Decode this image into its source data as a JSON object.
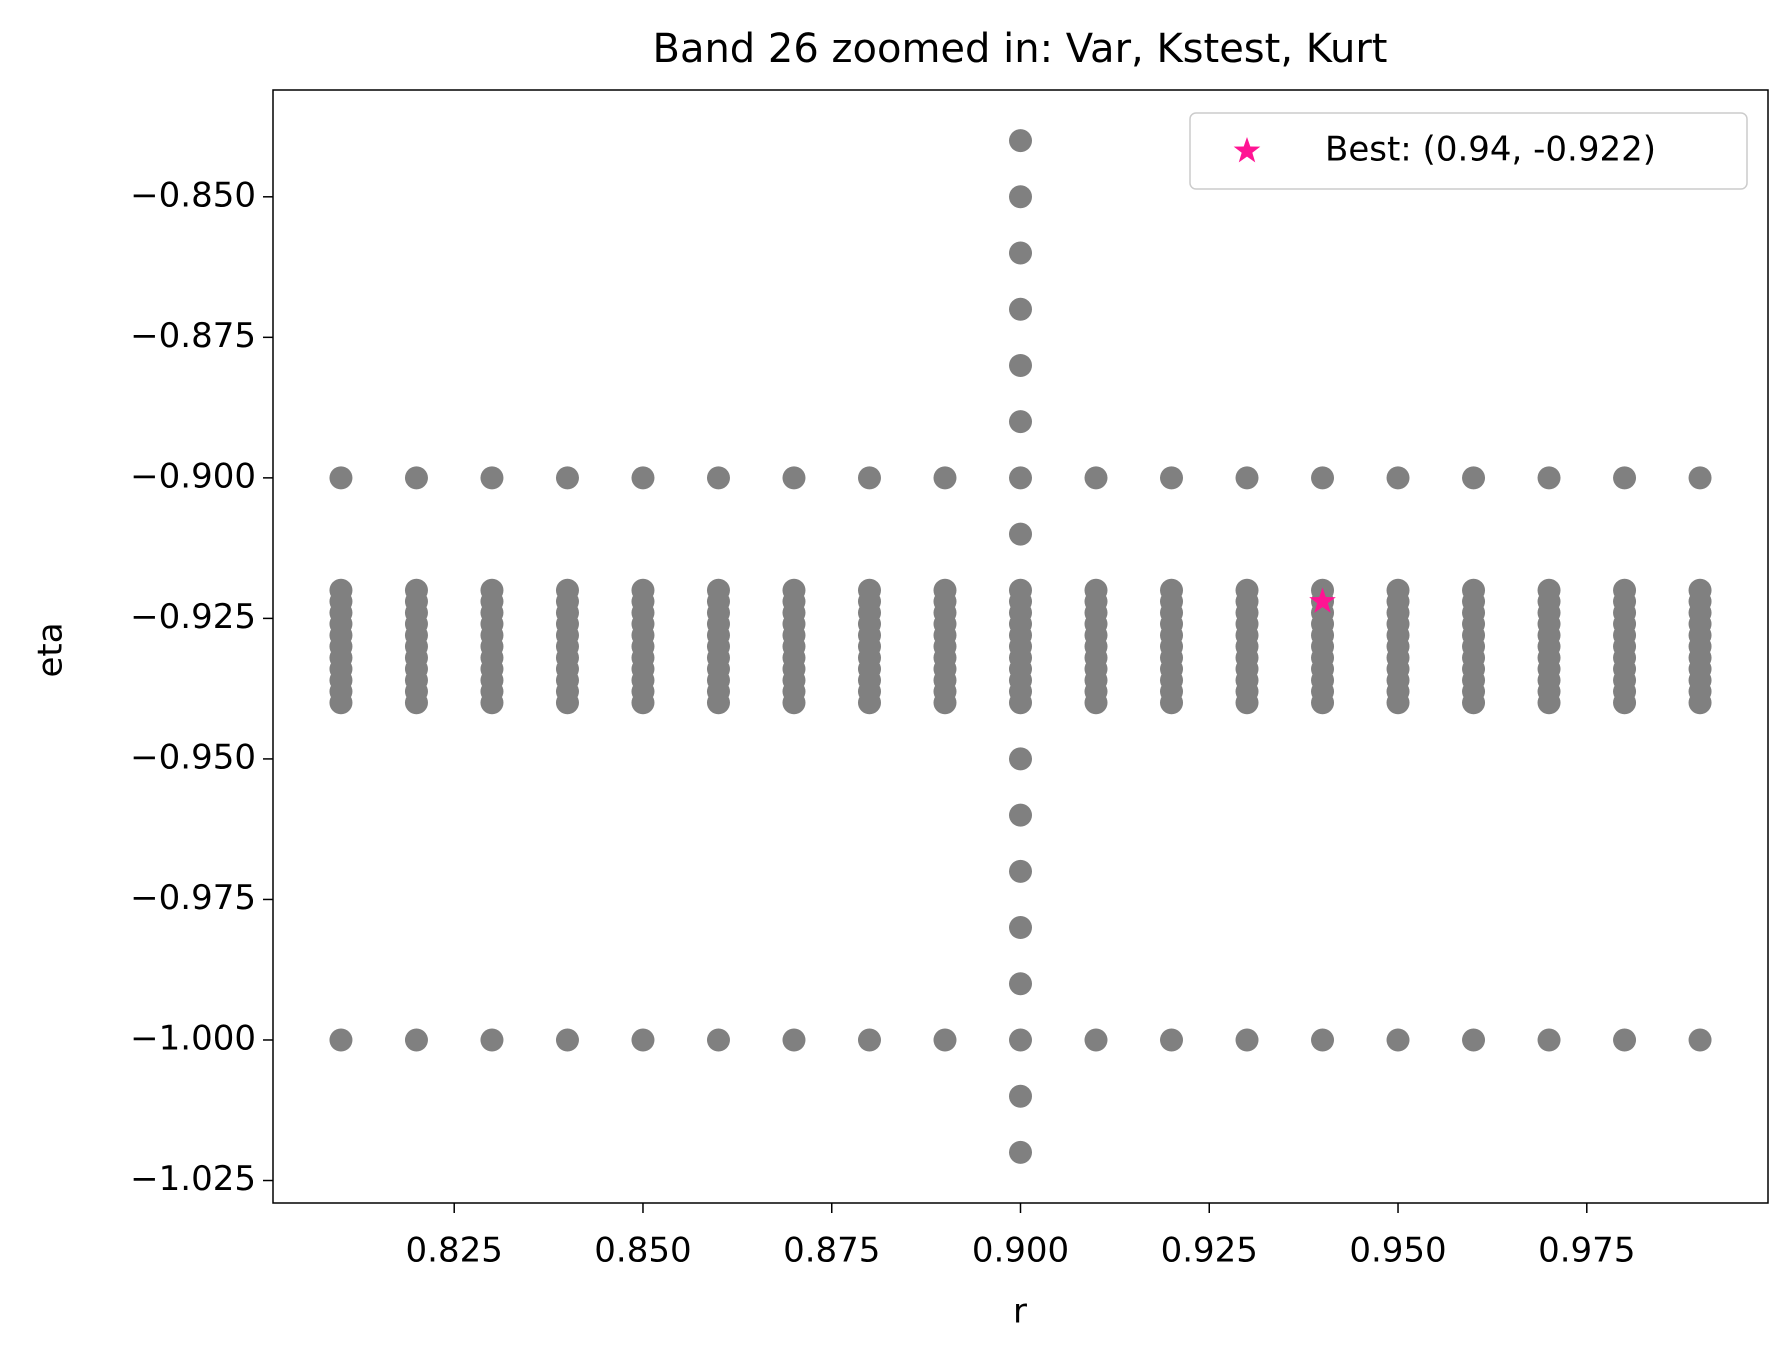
{
  "chart_data": {
    "type": "scatter",
    "title": "Band 26 zoomed in: Var, Kstest, Kurt",
    "xlabel": "r",
    "ylabel": "eta",
    "xlim": [
      0.801,
      0.999
    ],
    "ylim": [
      -1.029,
      -0.831
    ],
    "xticks": [
      0.825,
      {
        "value": 0.85,
        "label": "0.850"
      },
      0.875,
      {
        "value": 0.9,
        "label": "0.900"
      },
      0.925,
      {
        "value": 0.95,
        "label": "0.950"
      },
      0.975
    ],
    "yticks": [
      {
        "value": -0.85,
        "label": "−0.850"
      },
      {
        "value": -0.875,
        "label": "−0.875"
      },
      {
        "value": -0.9,
        "label": "−0.900"
      },
      {
        "value": -0.925,
        "label": "−0.925"
      },
      {
        "value": -0.95,
        "label": "−0.950"
      },
      {
        "value": -0.975,
        "label": "−0.975"
      },
      {
        "value": -1.0,
        "label": "−1.000"
      },
      {
        "value": -1.025,
        "label": "−1.025"
      }
    ],
    "grid": false,
    "point_color": "#808080",
    "columns": [
      {
        "x": 0.81,
        "y": [
          -0.9,
          -0.92,
          -0.922,
          -0.924,
          -0.926,
          -0.928,
          -0.93,
          -0.932,
          -0.934,
          -0.936,
          -0.938,
          -0.94,
          -1.0
        ]
      },
      {
        "x": 0.82,
        "y": [
          -0.9,
          -0.92,
          -0.922,
          -0.924,
          -0.926,
          -0.928,
          -0.93,
          -0.932,
          -0.934,
          -0.936,
          -0.938,
          -0.94,
          -1.0
        ]
      },
      {
        "x": 0.83,
        "y": [
          -0.9,
          -0.92,
          -0.922,
          -0.924,
          -0.926,
          -0.928,
          -0.93,
          -0.932,
          -0.934,
          -0.936,
          -0.938,
          -0.94,
          -1.0
        ]
      },
      {
        "x": 0.84,
        "y": [
          -0.9,
          -0.92,
          -0.922,
          -0.924,
          -0.926,
          -0.928,
          -0.93,
          -0.932,
          -0.934,
          -0.936,
          -0.938,
          -0.94,
          -1.0
        ]
      },
      {
        "x": 0.85,
        "y": [
          -0.9,
          -0.92,
          -0.922,
          -0.924,
          -0.926,
          -0.928,
          -0.93,
          -0.932,
          -0.934,
          -0.936,
          -0.938,
          -0.94,
          -1.0
        ]
      },
      {
        "x": 0.86,
        "y": [
          -0.9,
          -0.92,
          -0.922,
          -0.924,
          -0.926,
          -0.928,
          -0.93,
          -0.932,
          -0.934,
          -0.936,
          -0.938,
          -0.94,
          -1.0
        ]
      },
      {
        "x": 0.87,
        "y": [
          -0.9,
          -0.92,
          -0.922,
          -0.924,
          -0.926,
          -0.928,
          -0.93,
          -0.932,
          -0.934,
          -0.936,
          -0.938,
          -0.94,
          -1.0
        ]
      },
      {
        "x": 0.88,
        "y": [
          -0.9,
          -0.92,
          -0.922,
          -0.924,
          -0.926,
          -0.928,
          -0.93,
          -0.932,
          -0.934,
          -0.936,
          -0.938,
          -0.94,
          -1.0
        ]
      },
      {
        "x": 0.89,
        "y": [
          -0.9,
          -0.92,
          -0.922,
          -0.924,
          -0.926,
          -0.928,
          -0.93,
          -0.932,
          -0.934,
          -0.936,
          -0.938,
          -0.94,
          -1.0
        ]
      },
      {
        "x": 0.9,
        "y": [
          -0.84,
          -0.85,
          -0.86,
          -0.87,
          -0.88,
          -0.89,
          -0.9,
          -0.91,
          -0.92,
          -0.922,
          -0.924,
          -0.926,
          -0.928,
          -0.93,
          -0.932,
          -0.934,
          -0.936,
          -0.938,
          -0.94,
          -0.95,
          -0.96,
          -0.97,
          -0.98,
          -0.99,
          -1.0,
          -1.01,
          -1.02
        ]
      },
      {
        "x": 0.91,
        "y": [
          -0.9,
          -0.92,
          -0.922,
          -0.924,
          -0.926,
          -0.928,
          -0.93,
          -0.932,
          -0.934,
          -0.936,
          -0.938,
          -0.94,
          -1.0
        ]
      },
      {
        "x": 0.92,
        "y": [
          -0.9,
          -0.92,
          -0.922,
          -0.924,
          -0.926,
          -0.928,
          -0.93,
          -0.932,
          -0.934,
          -0.936,
          -0.938,
          -0.94,
          -1.0
        ]
      },
      {
        "x": 0.93,
        "y": [
          -0.9,
          -0.92,
          -0.922,
          -0.924,
          -0.926,
          -0.928,
          -0.93,
          -0.932,
          -0.934,
          -0.936,
          -0.938,
          -0.94,
          -1.0
        ]
      },
      {
        "x": 0.94,
        "y": [
          -0.9,
          -0.92,
          -0.922,
          -0.924,
          -0.926,
          -0.928,
          -0.93,
          -0.932,
          -0.934,
          -0.936,
          -0.938,
          -0.94,
          -1.0
        ]
      },
      {
        "x": 0.95,
        "y": [
          -0.9,
          -0.92,
          -0.922,
          -0.924,
          -0.926,
          -0.928,
          -0.93,
          -0.932,
          -0.934,
          -0.936,
          -0.938,
          -0.94,
          -1.0
        ]
      },
      {
        "x": 0.96,
        "y": [
          -0.9,
          -0.92,
          -0.922,
          -0.924,
          -0.926,
          -0.928,
          -0.93,
          -0.932,
          -0.934,
          -0.936,
          -0.938,
          -0.94,
          -1.0
        ]
      },
      {
        "x": 0.97,
        "y": [
          -0.9,
          -0.92,
          -0.922,
          -0.924,
          -0.926,
          -0.928,
          -0.93,
          -0.932,
          -0.934,
          -0.936,
          -0.938,
          -0.94,
          -1.0
        ]
      },
      {
        "x": 0.98,
        "y": [
          -0.9,
          -0.92,
          -0.922,
          -0.924,
          -0.926,
          -0.928,
          -0.93,
          -0.932,
          -0.934,
          -0.936,
          -0.938,
          -0.94,
          -1.0
        ]
      },
      {
        "x": 0.99,
        "y": [
          -0.9,
          -0.92,
          -0.922,
          -0.924,
          -0.926,
          -0.928,
          -0.93,
          -0.932,
          -0.934,
          -0.936,
          -0.938,
          -0.94,
          -1.0
        ]
      }
    ],
    "best": {
      "name": "Best: (0.94, -0.922)",
      "color": "#ff1493",
      "x": 0.94,
      "y": -0.922
    },
    "legend": "upper right"
  }
}
